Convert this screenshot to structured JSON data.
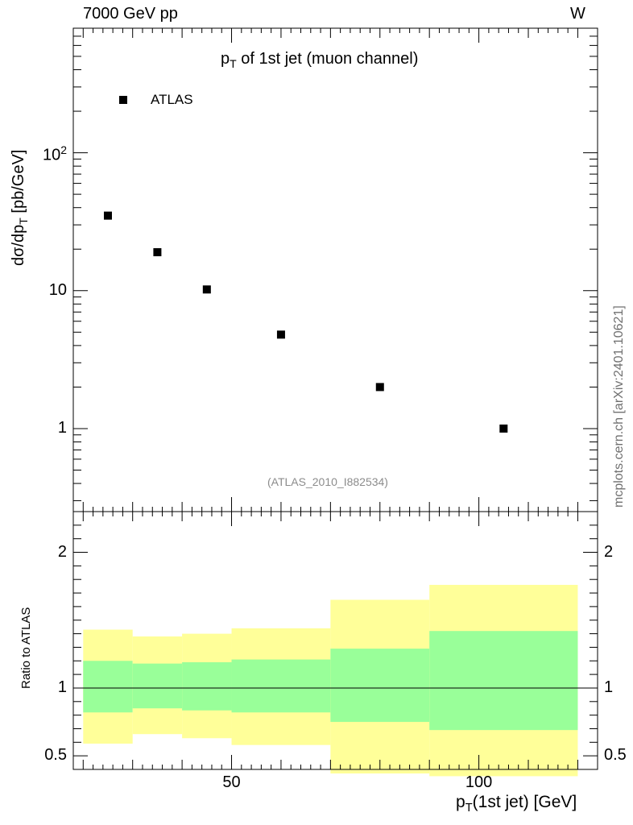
{
  "header": {
    "energy_label": "7000 GeV pp",
    "process_label": "W"
  },
  "plot_title": {
    "main": "p",
    "sub": "T",
    "rest": " of 1st jet (muon channel)"
  },
  "legend": {
    "label": "ATLAS"
  },
  "reference_label": "(ATLAS_2010_I882534)",
  "watermark": "mcplots.cern.ch [arXiv:2401.10621]",
  "y_axis_main": {
    "pre": "dσ/dp",
    "sub": "T",
    "post": " [pb/GeV]"
  },
  "y_axis_ratio": "Ratio to ATLAS",
  "x_axis": {
    "pre": "p",
    "sub": "T",
    "post": "(1st jet) [GeV]"
  },
  "colors": {
    "band_outer": "#ffff99",
    "band_inner": "#99ff99",
    "marker": "#000000"
  },
  "chart_data": [
    {
      "type": "scatter",
      "panel": "main",
      "scale": "log",
      "xlim": [
        18,
        124
      ],
      "ylim": [
        0.25,
        800
      ],
      "y_tick_labels": [
        {
          "value": 1,
          "label": "1"
        },
        {
          "value": 10,
          "label": "10"
        },
        {
          "value": 100,
          "label": "10",
          "sup": "2"
        }
      ],
      "series": [
        {
          "name": "ATLAS",
          "points": [
            {
              "x": 25,
              "y": 35
            },
            {
              "x": 35,
              "y": 19
            },
            {
              "x": 45,
              "y": 10.2
            },
            {
              "x": 60,
              "y": 4.8
            },
            {
              "x": 80,
              "y": 2.0
            },
            {
              "x": 105,
              "y": 1.0
            }
          ]
        }
      ]
    },
    {
      "type": "area",
      "panel": "ratio",
      "xlim": [
        18,
        124
      ],
      "ylim": [
        0.4,
        2.3
      ],
      "reference_line": 1,
      "x_tick_labels": [
        {
          "value": 50,
          "label": "50"
        },
        {
          "value": 100,
          "label": "100"
        }
      ],
      "y_tick_labels": [
        {
          "value": 0.5,
          "label": "0.5"
        },
        {
          "value": 1,
          "label": "1"
        },
        {
          "value": 2,
          "label": "2"
        }
      ],
      "bins": [
        {
          "lo": 20,
          "hi": 30,
          "inner": [
            0.82,
            1.2
          ],
          "outer": [
            0.59,
            1.43
          ]
        },
        {
          "lo": 30,
          "hi": 40,
          "inner": [
            0.85,
            1.18
          ],
          "outer": [
            0.66,
            1.38
          ]
        },
        {
          "lo": 40,
          "hi": 50,
          "inner": [
            0.835,
            1.19
          ],
          "outer": [
            0.63,
            1.4
          ]
        },
        {
          "lo": 50,
          "hi": 70,
          "inner": [
            0.82,
            1.21
          ],
          "outer": [
            0.58,
            1.44
          ]
        },
        {
          "lo": 70,
          "hi": 90,
          "inner": [
            0.75,
            1.29
          ],
          "outer": [
            0.37,
            1.65
          ]
        },
        {
          "lo": 90,
          "hi": 120,
          "inner": [
            0.69,
            1.42
          ],
          "outer": [
            0.35,
            1.76
          ]
        }
      ]
    }
  ]
}
